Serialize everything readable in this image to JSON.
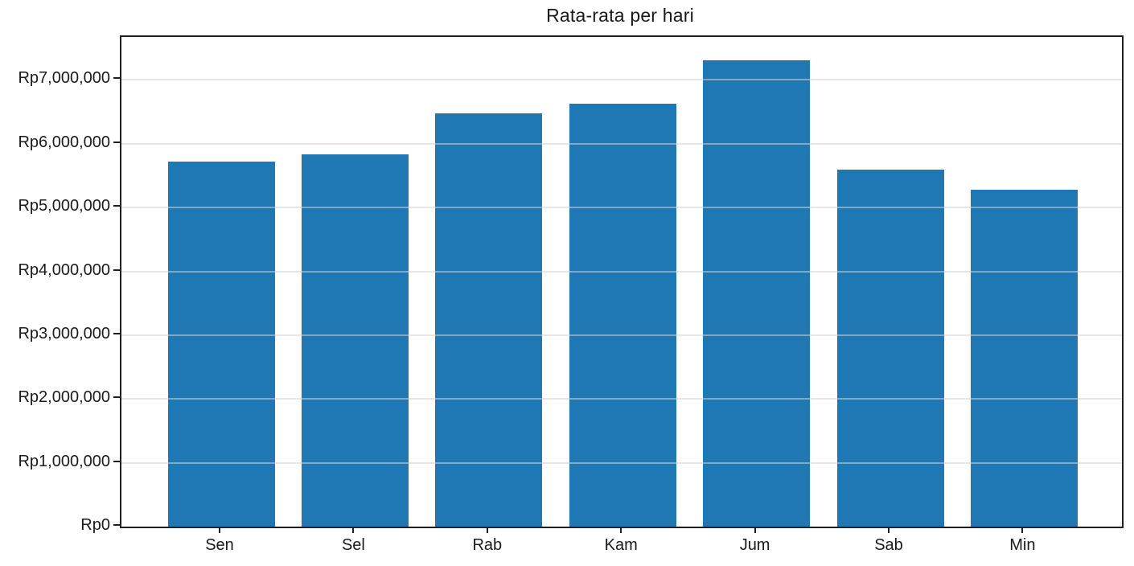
{
  "chart_data": {
    "type": "bar",
    "title": "Rata-rata per hari",
    "xlabel": "",
    "ylabel": "",
    "categories": [
      "Sen",
      "Sel",
      "Rab",
      "Kam",
      "Jum",
      "Sab",
      "Min"
    ],
    "values": [
      5720000,
      5830000,
      6480000,
      6630000,
      7310000,
      5590000,
      5280000
    ],
    "y_ticks": [
      {
        "value": 0,
        "label": "Rp0"
      },
      {
        "value": 1000000,
        "label": "Rp1,000,000"
      },
      {
        "value": 2000000,
        "label": "Rp2,000,000"
      },
      {
        "value": 3000000,
        "label": "Rp3,000,000"
      },
      {
        "value": 4000000,
        "label": "Rp4,000,000"
      },
      {
        "value": 5000000,
        "label": "Rp5,000,000"
      },
      {
        "value": 6000000,
        "label": "Rp6,000,000"
      },
      {
        "value": 7000000,
        "label": "Rp7,000,000"
      }
    ],
    "ylim": [
      0,
      7674000
    ],
    "bar_color": "#1f77b4",
    "grid": "horizontal",
    "legend": "none",
    "currency_prefix": "Rp"
  }
}
